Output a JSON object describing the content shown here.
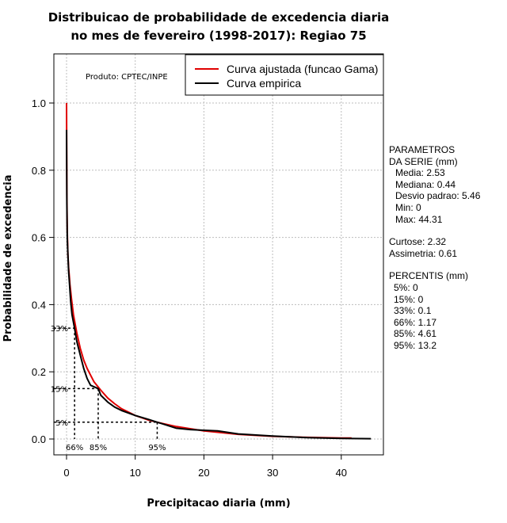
{
  "chart_data": {
    "type": "line",
    "title_line1": "Distribuicao de probabilidade de excedencia diaria",
    "title_line2": "no mes de fevereiro (1998-2017): Regiao 75",
    "xlabel": "Precipitacao diaria (mm)",
    "ylabel": "Probabilidade de excedencia",
    "xlim": [
      -2,
      46
    ],
    "ylim": [
      -0.05,
      1.15
    ],
    "xticks": [
      0,
      10,
      20,
      30,
      40
    ],
    "yticks": [
      0.0,
      0.2,
      0.4,
      0.6,
      0.8,
      1.0
    ],
    "xtick_labels": [
      "0",
      "10",
      "20",
      "30",
      "40"
    ],
    "ytick_labels": [
      "0.0",
      "0.2",
      "0.4",
      "0.6",
      "0.8",
      "1.0"
    ],
    "grid": true,
    "legend_position": "top-right",
    "source_note": "Produto: CPTEC/INPE",
    "series": [
      {
        "name": "Curva ajustada (funcao Gama)",
        "color": "#e00000",
        "x": [
          0,
          0.05,
          0.1,
          0.2,
          0.3,
          0.4,
          0.5,
          0.7,
          1,
          1.5,
          2,
          2.5,
          3,
          4,
          5,
          6,
          7,
          8,
          10,
          12,
          14,
          16,
          20,
          25,
          30,
          35,
          40,
          41.5
        ],
        "y": [
          1.0,
          0.73,
          0.62,
          0.55,
          0.51,
          0.485,
          0.46,
          0.42,
          0.37,
          0.315,
          0.27,
          0.235,
          0.21,
          0.17,
          0.145,
          0.122,
          0.105,
          0.09,
          0.07,
          0.056,
          0.046,
          0.037,
          0.024,
          0.014,
          0.008,
          0.005,
          0.003,
          0.003
        ]
      },
      {
        "name": "Curva empirica",
        "color": "#000000",
        "x": [
          0,
          0.05,
          0.1,
          0.2,
          0.3,
          0.44,
          0.6,
          0.8,
          1.17,
          1.5,
          2,
          2.5,
          3,
          3.5,
          4.61,
          5,
          6,
          7,
          8,
          10,
          12,
          13.2,
          14,
          16,
          18,
          20,
          22,
          25,
          30,
          35,
          40,
          44.31
        ],
        "y": [
          0.92,
          0.7,
          0.6,
          0.55,
          0.5,
          0.46,
          0.41,
          0.37,
          0.33,
          0.29,
          0.25,
          0.21,
          0.18,
          0.16,
          0.15,
          0.13,
          0.11,
          0.095,
          0.085,
          0.07,
          0.058,
          0.05,
          0.045,
          0.032,
          0.028,
          0.026,
          0.024,
          0.015,
          0.009,
          0.004,
          0.002,
          0.001
        ]
      }
    ],
    "percentile_markers": [
      {
        "label_x": "66%",
        "label_y": "33%",
        "x": 1.17,
        "y": 0.33
      },
      {
        "label_x": "85%",
        "label_y": "15%",
        "x": 4.61,
        "y": 0.15
      },
      {
        "label_x": "95%",
        "label_y": "5%",
        "x": 13.2,
        "y": 0.05
      }
    ]
  },
  "side_panel": {
    "params_title_1": "PARAMETROS",
    "params_title_2": "DA SERIE (mm)",
    "media": "Media: 2.53",
    "mediana": "Mediana: 0.44",
    "desvio": "Desvio padrao: 5.46",
    "min": "Min: 0",
    "max": "Max: 44.31",
    "curtose": "Curtose: 2.32",
    "assimetria": "Assimetria: 0.61",
    "percentis_title": "PERCENTIS (mm)",
    "p5": "5%: 0",
    "p15": "15%: 0",
    "p33": "33%: 0.1",
    "p66": "66%: 1.17",
    "p85": "85%: 4.61",
    "p95": "95%: 13.2"
  }
}
